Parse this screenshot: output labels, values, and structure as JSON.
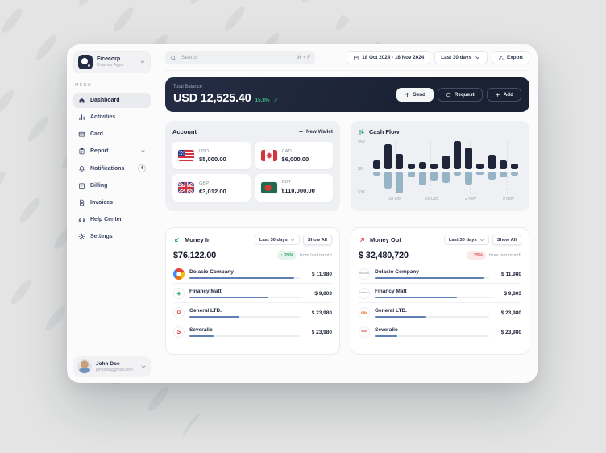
{
  "app": {
    "name": "Ficecorp",
    "subtitle": "Finance Apps"
  },
  "sidebar": {
    "menu_label": "MENU",
    "items": [
      {
        "label": "Dashboard",
        "icon": "home-icon",
        "active": true
      },
      {
        "label": "Activities",
        "icon": "activities-icon"
      },
      {
        "label": "Card",
        "icon": "card-icon"
      },
      {
        "label": "Report",
        "icon": "report-icon",
        "chevron": true
      },
      {
        "label": "Notifications",
        "icon": "bell-icon",
        "badge": "4"
      },
      {
        "label": "Billing",
        "icon": "billing-icon"
      },
      {
        "label": "Invoices",
        "icon": "invoice-icon"
      },
      {
        "label": "Help Center",
        "icon": "headset-icon"
      },
      {
        "label": "Settings",
        "icon": "gear-icon"
      }
    ],
    "user": {
      "name": "John Doe",
      "email": "johndoe@gmail.com"
    }
  },
  "topbar": {
    "search_placeholder": "Search",
    "search_shortcut": "⌘ + F",
    "date_range": "18 Oct 2024 - 18 Nov 2024",
    "period": "Last 30 days",
    "export_label": "Export"
  },
  "balance": {
    "label": "Total Balance",
    "amount": "USD 12,525.40",
    "change": "15.8%",
    "trend_arrow": "↗",
    "send": "Send",
    "request": "Request",
    "add": "Add"
  },
  "account": {
    "title": "Account",
    "new_wallet": "New Wallet",
    "wallets": [
      {
        "currency": "USD",
        "amount": "$5,000.00",
        "flag": "us"
      },
      {
        "currency": "CAD",
        "amount": "$6,000.00",
        "flag": "ca"
      },
      {
        "currency": "GBP",
        "amount": "€3,012.00",
        "flag": "gb"
      },
      {
        "currency": "BDT",
        "amount": "৳110,000.00",
        "flag": "bd"
      }
    ]
  },
  "cashflow": {
    "title": "Cash Flow",
    "chart_data": {
      "type": "bar",
      "title": "Cash Flow",
      "series": [
        {
          "name": "inflow",
          "color": "#20263a",
          "values": [
            1500,
            4300,
            2700,
            1000,
            1200,
            1000,
            2300,
            4800,
            3700,
            1000,
            2500,
            1500,
            1000
          ]
        },
        {
          "name": "outflow",
          "color": "#97b4c7",
          "values": [
            -500,
            -2200,
            -2900,
            -700,
            -1800,
            -1200,
            -1500,
            -500,
            -1700,
            -400,
            -1100,
            -800,
            -500
          ]
        }
      ],
      "x_tick_labels": [
        "18 Oct",
        "25 Oct",
        "2 Nov",
        "9 Nov"
      ],
      "y_tick_labels": [
        "$5K",
        "$0",
        "$3K"
      ],
      "ylim": [
        -3000,
        5000
      ],
      "grid": "vertical-dashed",
      "legend": "none"
    }
  },
  "money_in": {
    "title": "Money In",
    "period": "Last 30 days",
    "show_all": "Show All",
    "amount": "$76,122.00",
    "change": "25%",
    "change_arrow": "↑",
    "note": "from last month",
    "items": [
      {
        "name": "Dolasio Company",
        "amount": "$ 11,980",
        "progress": 95,
        "logo": {
          "multi": true
        }
      },
      {
        "name": "Financy Matt",
        "amount": "$ 9,803",
        "progress": 70,
        "logo": {
          "text": "◈",
          "color": "#0f9d58",
          "size": 7
        }
      },
      {
        "name": "General LTD.",
        "amount": "$ 23,980",
        "progress": 45,
        "logo": {
          "text": "G",
          "color": "#d8362f",
          "size": 6,
          "italic": true
        }
      },
      {
        "name": "Severalio",
        "amount": "$ 23,980",
        "progress": 22,
        "logo": {
          "text": "S",
          "color": "#d8362f",
          "size": 7,
          "italic": true
        }
      }
    ]
  },
  "money_out": {
    "title": "Money Out",
    "period": "Last 30 days",
    "show_all": "Show All",
    "amount": "$ 32,480,720",
    "change": "25%",
    "change_arrow": "↓",
    "note": "from last month",
    "items": [
      {
        "name": "Dolasio Company",
        "amount": "$ 11,980",
        "progress": 95,
        "logo": {
          "text": "DOLASIO",
          "color": "#9aa0ab",
          "size": 2.6
        }
      },
      {
        "name": "Financy Matt",
        "amount": "$ 9,803",
        "progress": 70,
        "logo": {
          "text": "FINANCY",
          "color": "#9aa0ab",
          "size": 2.6
        }
      },
      {
        "name": "General LTD.",
        "amount": "$ 23,980",
        "progress": 45,
        "logo": {
          "text": "GSK",
          "color": "#e8650d",
          "size": 4
        }
      },
      {
        "name": "Severalio",
        "amount": "$ 23,980",
        "progress": 20,
        "logo": {
          "text": "MIXI",
          "color": "#d8362f",
          "size": 3.4
        }
      }
    ]
  }
}
